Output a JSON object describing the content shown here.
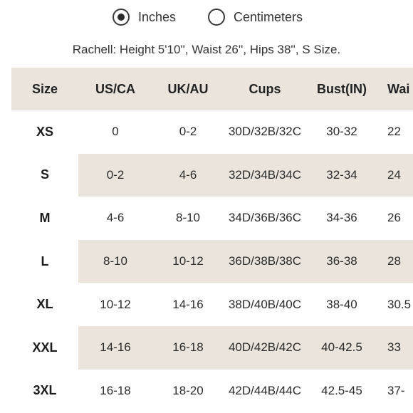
{
  "unit_toggle": {
    "options": [
      {
        "label": "Inches",
        "selected": true
      },
      {
        "label": "Centimeters",
        "selected": false
      }
    ]
  },
  "model_note": "Rachell: Height 5'10'', Waist 26'', Hips 38'', S Size.",
  "table": {
    "headers": [
      "Size",
      "US/CA",
      "UK/AU",
      "Cups",
      "Bust(IN)",
      "Wai"
    ],
    "rows": [
      [
        "XS",
        "0",
        "0-2",
        "30D/32B/32C",
        "30-32",
        "22"
      ],
      [
        "S",
        "0-2",
        "4-6",
        "32D/34B/34C",
        "32-34",
        "24"
      ],
      [
        "M",
        "4-6",
        "8-10",
        "34D/36B/36C",
        "34-36",
        "26"
      ],
      [
        "L",
        "8-10",
        "10-12",
        "36D/38B/38C",
        "36-38",
        "28"
      ],
      [
        "XL",
        "10-12",
        "14-16",
        "38D/40B/40C",
        "38-40",
        "30.5"
      ],
      [
        "XXL",
        "14-16",
        "16-18",
        "40D/42B/42C",
        "40-42.5",
        "33"
      ],
      [
        "3XL",
        "16-18",
        "18-20",
        "42D/44B/44C",
        "42.5-45",
        "37-"
      ]
    ]
  },
  "colors": {
    "header_bg": "#ebe4dc",
    "stripe_bg": "#ebe4dc",
    "text": "#2b2b2b"
  }
}
